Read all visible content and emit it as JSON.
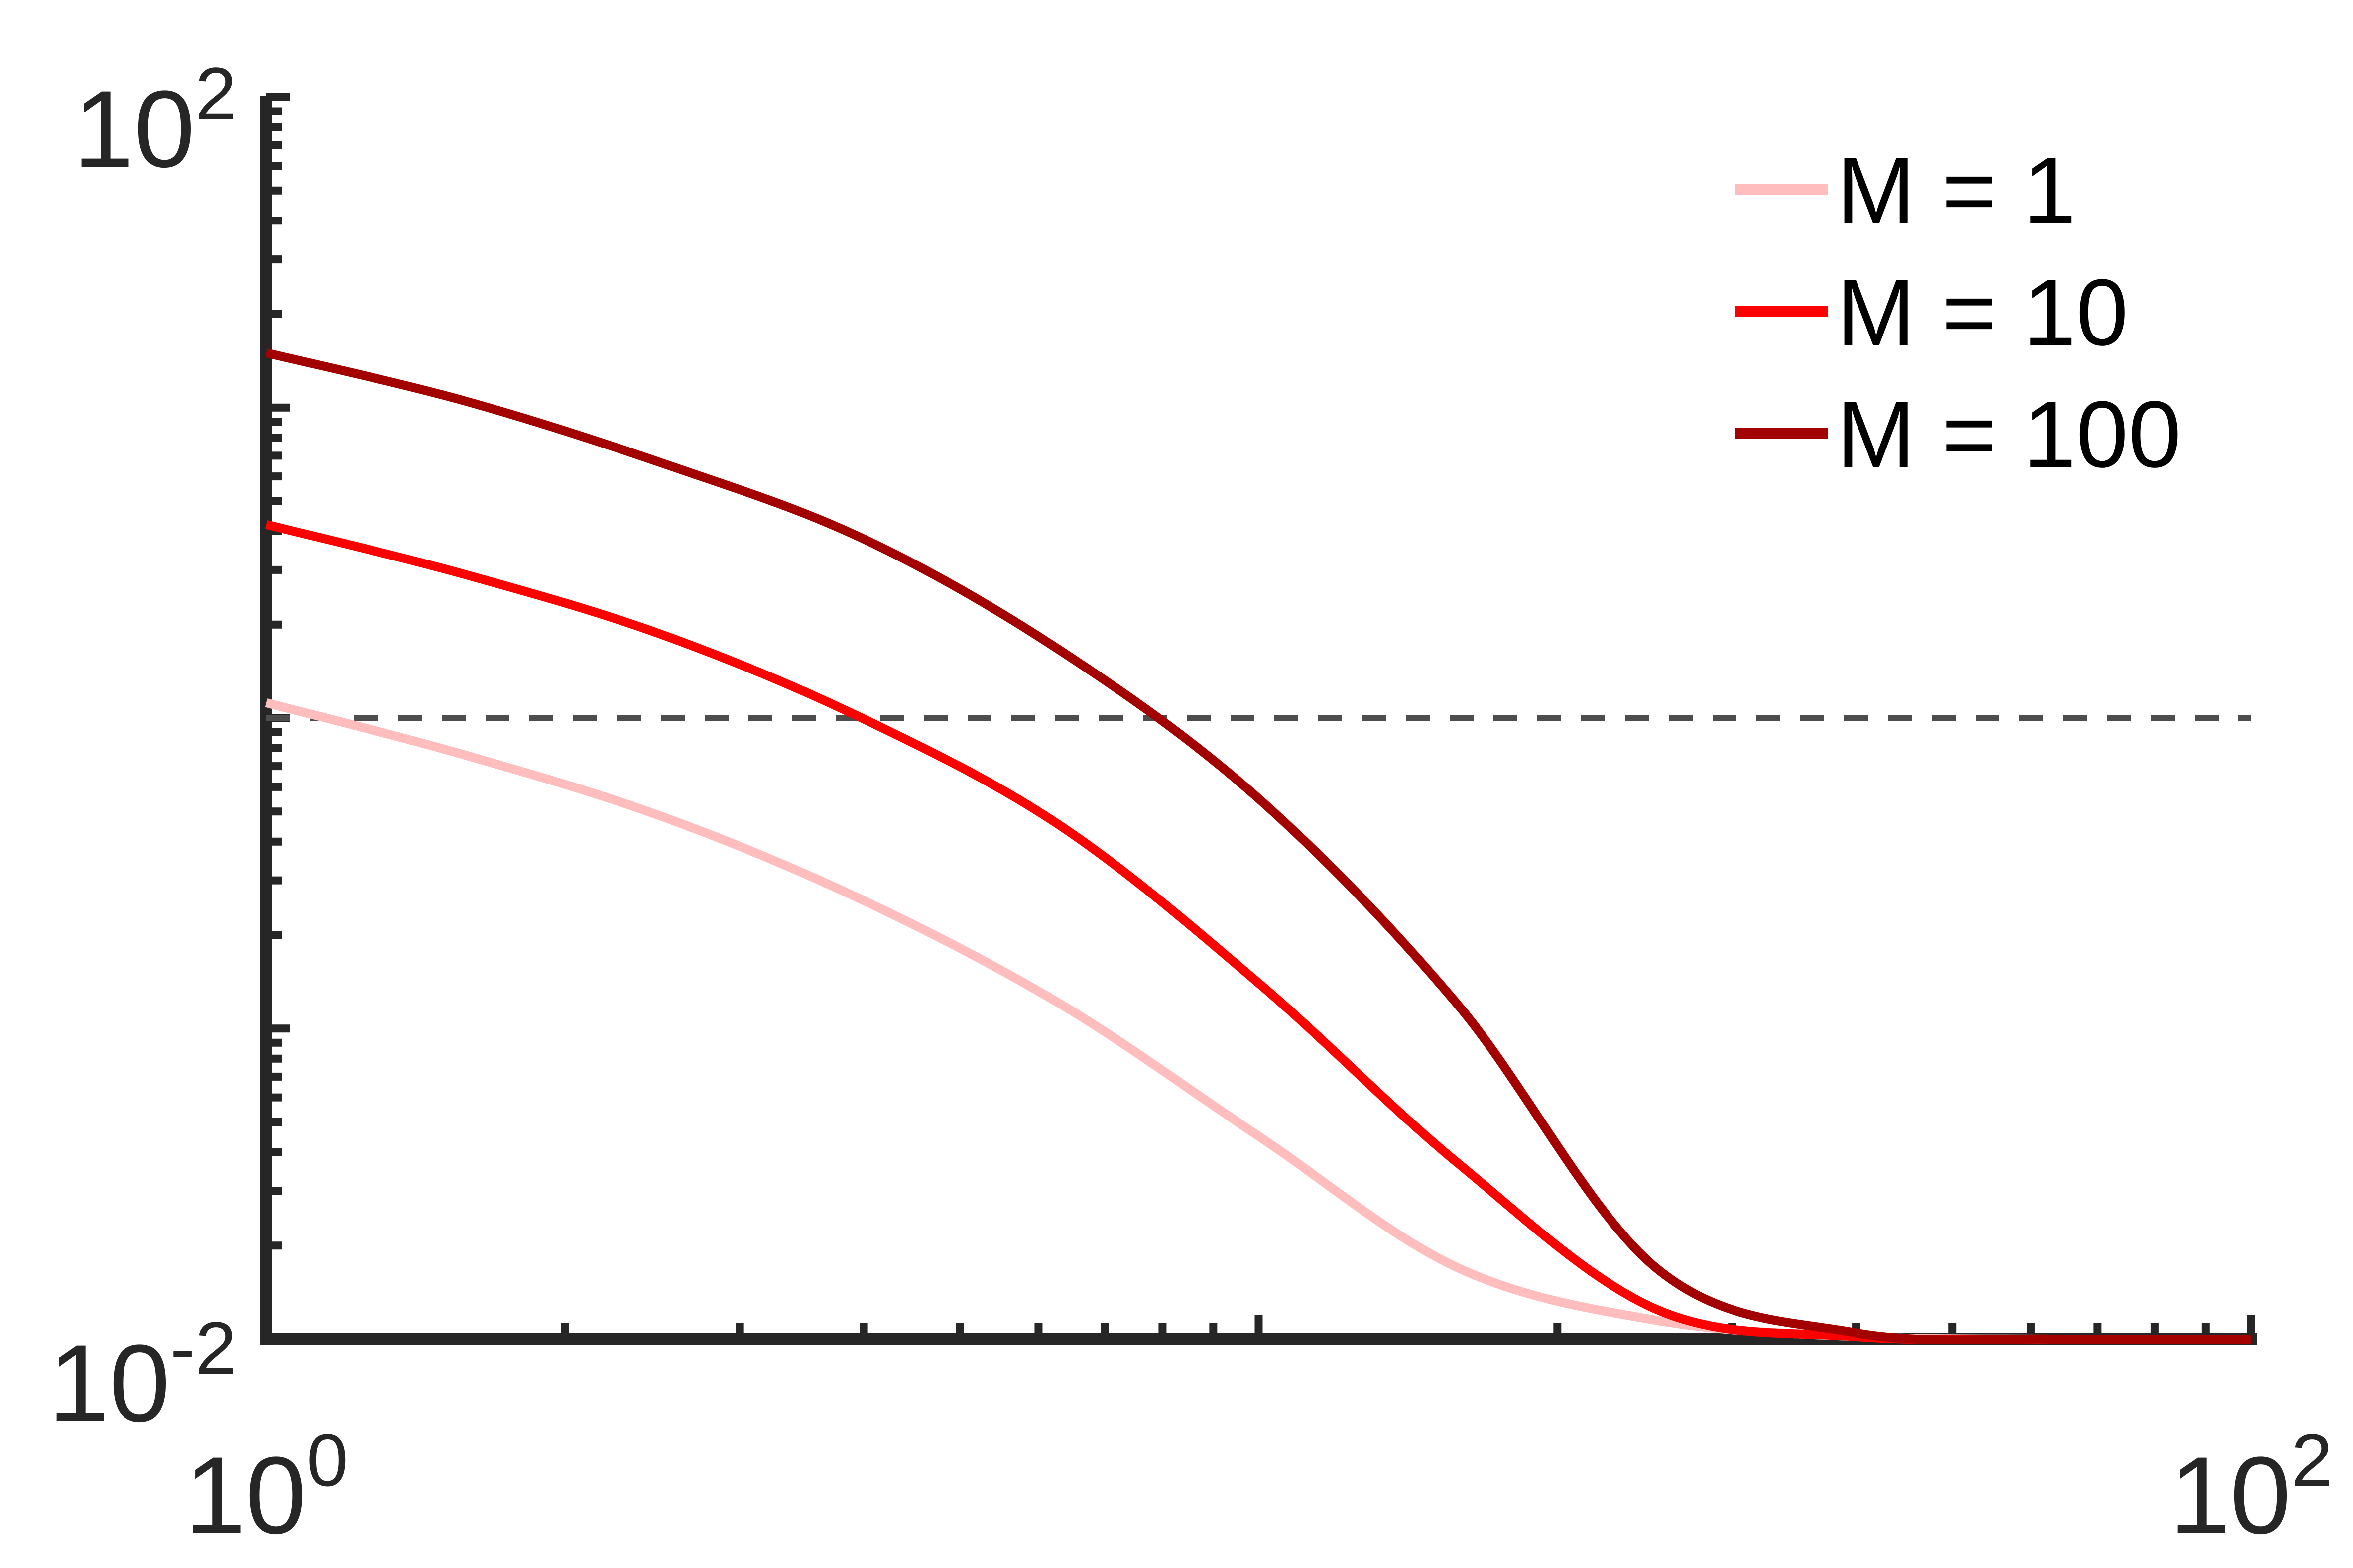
{
  "chart_data": {
    "type": "line",
    "title": "",
    "xlabel": "",
    "ylabel": "",
    "xscale": "log",
    "yscale": "log",
    "xlim": [
      1,
      100
    ],
    "ylim": [
      0.01,
      100
    ],
    "x_tick_labels": [
      {
        "base": "10",
        "exp": "0",
        "value": 1
      },
      {
        "base": "10",
        "exp": "2",
        "value": 100
      }
    ],
    "y_tick_labels": [
      {
        "base": "10",
        "exp": "-2",
        "value": 0.01
      },
      {
        "base": "10",
        "exp": "2",
        "value": 100
      }
    ],
    "grid": false,
    "legend_position": "top-right",
    "reference_line": {
      "y": 1,
      "style": "dashed",
      "color": "#4d4d4d"
    },
    "series": [
      {
        "name": "M = 1",
        "color": "#ffbdbd",
        "x": [
          1,
          1.585,
          2.512,
          3.981,
          6.31,
          10,
          15.85,
          25.12,
          39.81,
          63.1,
          100
        ],
        "y": [
          1.12,
          0.76,
          0.48,
          0.26,
          0.12,
          0.045,
          0.017,
          0.0115,
          0.0102,
          0.01,
          0.01
        ]
      },
      {
        "name": "M = 10",
        "color": "#ff0000",
        "x": [
          1,
          1.585,
          2.512,
          3.981,
          6.31,
          10,
          15.85,
          25.12,
          39.81,
          63.1,
          100
        ],
        "y": [
          4.2,
          2.9,
          1.85,
          1.0,
          0.45,
          0.14,
          0.037,
          0.0125,
          0.0102,
          0.01,
          0.01
        ]
      },
      {
        "name": "M = 100",
        "color": "#a30000",
        "x": [
          1,
          1.585,
          2.512,
          3.981,
          6.31,
          10,
          15.85,
          25.12,
          39.81,
          63.1,
          100
        ],
        "y": [
          15.0,
          10.5,
          6.6,
          3.8,
          1.65,
          0.55,
          0.12,
          0.017,
          0.0105,
          0.01,
          0.01
        ]
      }
    ]
  }
}
